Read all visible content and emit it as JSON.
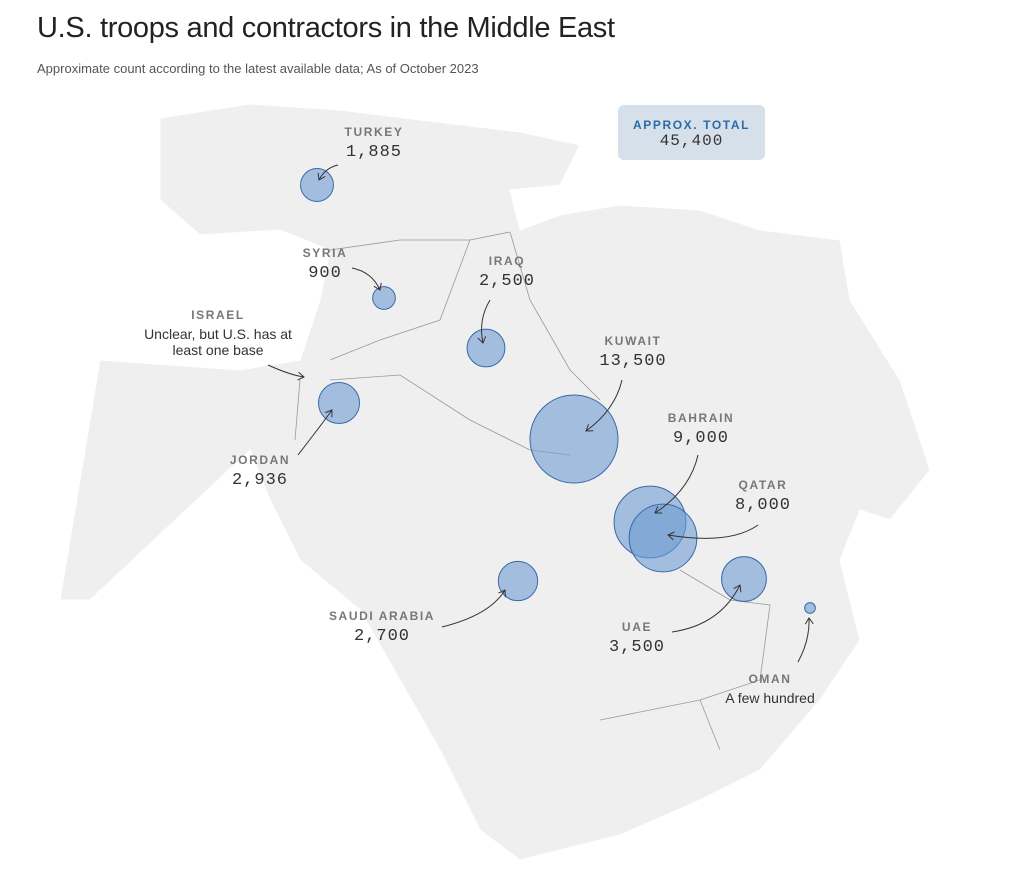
{
  "header": {
    "title": "U.S. troops and contractors in the Middle East",
    "subtitle": "Approximate count according to the latest available data; As of October 2023"
  },
  "total": {
    "label": "APPROX. TOTAL",
    "value": 45400,
    "value_label": "45,400"
  },
  "locations": [
    {
      "name": "TURKEY",
      "value": 1885,
      "value_label": "1,885"
    },
    {
      "name": "SYRIA",
      "value": 900,
      "value_label": "900"
    },
    {
      "name": "ISRAEL",
      "note": "Unclear, but U.S. has at least one base"
    },
    {
      "name": "IRAQ",
      "value": 2500,
      "value_label": "2,500"
    },
    {
      "name": "KUWAIT",
      "value": 13500,
      "value_label": "13,500"
    },
    {
      "name": "BAHRAIN",
      "value": 9000,
      "value_label": "9,000"
    },
    {
      "name": "QATAR",
      "value": 8000,
      "value_label": "8,000"
    },
    {
      "name": "JORDAN",
      "value": 2936,
      "value_label": "2,936"
    },
    {
      "name": "SAUDI ARABIA",
      "value": 2700,
      "value_label": "2,700"
    },
    {
      "name": "UAE",
      "value": 3500,
      "value_label": "3,500"
    },
    {
      "name": "OMAN",
      "value": 200,
      "value_label": "A few hundred"
    }
  ]
}
